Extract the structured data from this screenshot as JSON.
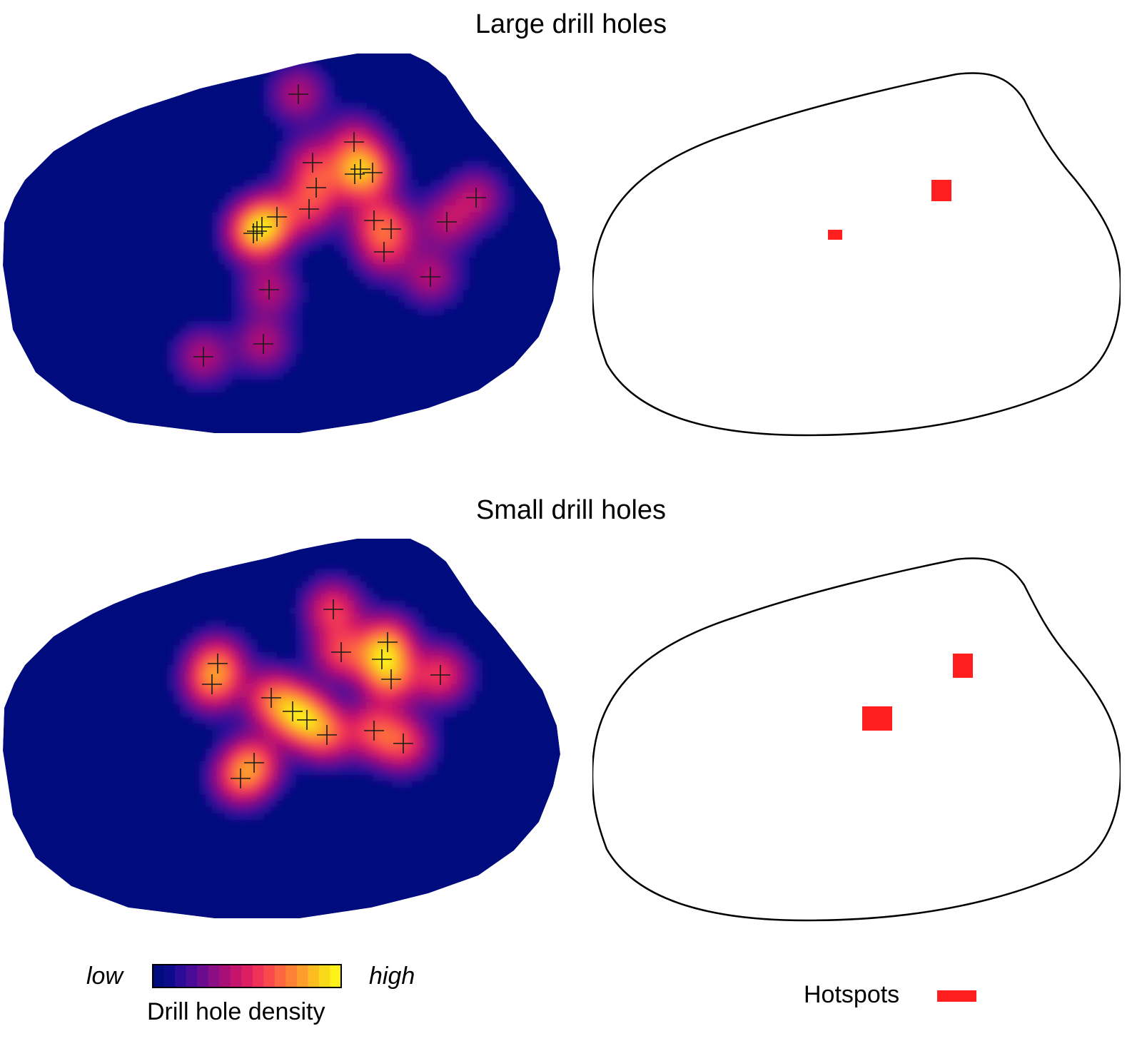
{
  "titles": {
    "large": "Large drill holes",
    "small": "Small drill holes"
  },
  "legend": {
    "low": "low",
    "high": "high",
    "caption": "Drill hole density",
    "hotspot_label": "Hotspots",
    "hotspot_color": "#ff1f1f"
  },
  "colormap": [
    "#000c7d",
    "#0c0c8a",
    "#2a0c99",
    "#4a0c96",
    "#6a0c8e",
    "#8a0e84",
    "#a81078",
    "#c4146c",
    "#dc1e62",
    "#ee3258",
    "#f84a4c",
    "#fc6640",
    "#fd8236",
    "#fd9e2c",
    "#fcbc22",
    "#f8da1a",
    "#fff21a"
  ],
  "chart_data": [
    {
      "type": "heatmap",
      "title": "Large drill holes",
      "panel": "density",
      "points": [
        [
          418,
          60
        ],
        [
          496,
          127
        ],
        [
          438,
          156
        ],
        [
          505,
          165
        ],
        [
          522,
          170
        ],
        [
          497,
          172
        ],
        [
          443,
          191
        ],
        [
          433,
          221
        ],
        [
          388,
          232
        ],
        [
          524,
          237
        ],
        [
          367,
          246
        ],
        [
          360,
          252
        ],
        [
          355,
          255
        ],
        [
          548,
          249
        ],
        [
          538,
          281
        ],
        [
          667,
          205
        ],
        [
          626,
          239
        ],
        [
          603,
          316
        ],
        [
          377,
          334
        ],
        [
          369,
          410
        ],
        [
          285,
          428
        ]
      ]
    },
    {
      "type": "heatmap",
      "title": "Large drill holes",
      "panel": "hotspots",
      "hotspots": [
        {
          "x": 475,
          "y": 156,
          "w": 28,
          "h": 30
        },
        {
          "x": 330,
          "y": 226,
          "w": 20,
          "h": 14
        }
      ]
    },
    {
      "type": "heatmap",
      "title": "Small drill holes",
      "panel": "density",
      "points": [
        [
          467,
          102
        ],
        [
          478,
          162
        ],
        [
          543,
          148
        ],
        [
          535,
          172
        ],
        [
          548,
          200
        ],
        [
          617,
          194
        ],
        [
          305,
          178
        ],
        [
          297,
          207
        ],
        [
          380,
          226
        ],
        [
          410,
          245
        ],
        [
          430,
          257
        ],
        [
          458,
          278
        ],
        [
          524,
          272
        ],
        [
          565,
          290
        ],
        [
          356,
          317
        ],
        [
          337,
          339
        ]
      ]
    },
    {
      "type": "heatmap",
      "title": "Small drill holes",
      "panel": "hotspots",
      "hotspots": [
        {
          "x": 505,
          "y": 140,
          "w": 28,
          "h": 34
        },
        {
          "x": 378,
          "y": 214,
          "w": 42,
          "h": 34
        }
      ]
    }
  ]
}
